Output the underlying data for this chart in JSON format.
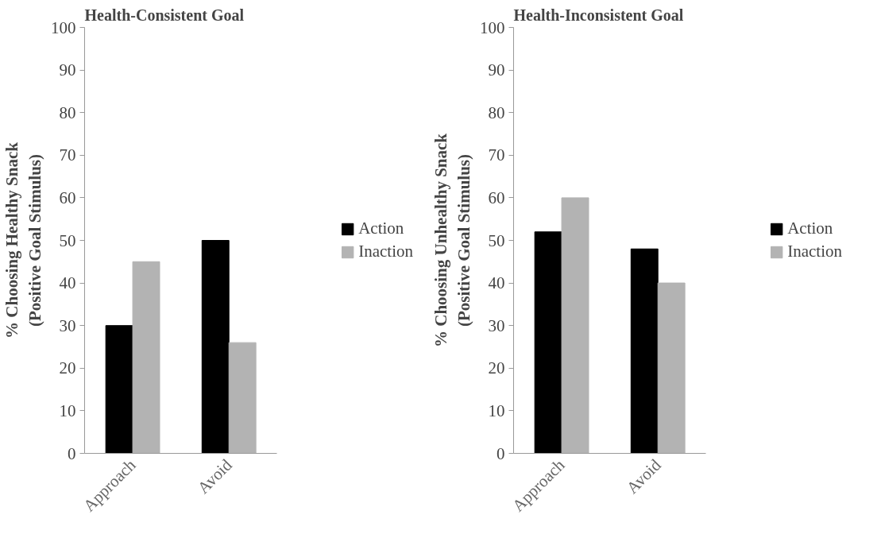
{
  "chart_data": [
    {
      "type": "bar",
      "title": "Health-Consistent Goal",
      "ylabel": "% Choosing Healthy Snack\n(Positive Goal Stimulus)",
      "categories": [
        "Approach",
        "Avoid"
      ],
      "series": [
        {
          "name": "Action",
          "color": "#000000",
          "values": [
            30,
            50
          ]
        },
        {
          "name": "Inaction",
          "color": "#b3b3b3",
          "values": [
            45,
            26
          ]
        }
      ],
      "ylim": [
        0,
        100
      ],
      "yticks": [
        0,
        10,
        20,
        30,
        40,
        50,
        60,
        70,
        80,
        90,
        100
      ],
      "grid": false,
      "legend": "right"
    },
    {
      "type": "bar",
      "title": "Health-Inconsistent Goal",
      "ylabel": "% Choosing Unhealthy Snack\n(Positive Goal Stimulus)",
      "categories": [
        "Approach",
        "Avoid"
      ],
      "series": [
        {
          "name": "Action",
          "color": "#000000",
          "values": [
            52,
            48
          ]
        },
        {
          "name": "Inaction",
          "color": "#b3b3b3",
          "values": [
            60,
            40
          ]
        }
      ],
      "ylim": [
        0,
        100
      ],
      "yticks": [
        0,
        10,
        20,
        30,
        40,
        50,
        60,
        70,
        80,
        90,
        100
      ],
      "grid": false,
      "legend": "right"
    }
  ]
}
